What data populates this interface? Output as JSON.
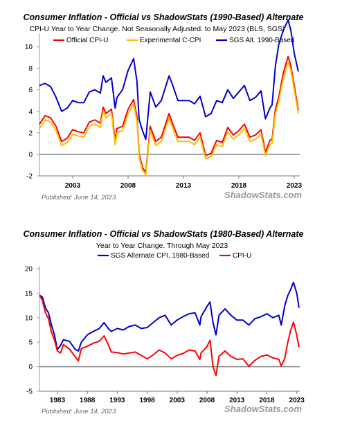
{
  "chart_data": [
    {
      "type": "line",
      "title": "Consumer Inflation - Official vs ShadowStats (1990-Based) Alternate",
      "subtitle": "CPI-U Year to Year Change. Not Seasonally Adjusted. to May 2023  (BLS, SGS)",
      "published": "Published: June 14, 2023",
      "brand": "ShadowStats.com",
      "xlim": [
        2000.0,
        2023.5
      ],
      "ylim": [
        -2,
        11
      ],
      "yticks": [
        "-2",
        "0",
        "2",
        "4",
        "6",
        "8",
        "10"
      ],
      "xticks": [
        "2003",
        "2008",
        "2013",
        "2018",
        "2023"
      ],
      "grid": false,
      "legend": "top",
      "series": [
        {
          "name": "Official CPI-U",
          "color": "#ff0000",
          "x": [
            2000.0,
            2000.5,
            2001.0,
            2001.5,
            2002.0,
            2002.5,
            2003.0,
            2003.5,
            2004.0,
            2004.5,
            2005.0,
            2005.5,
            2005.75,
            2006.0,
            2006.5,
            2006.83,
            2007.0,
            2007.5,
            2008.0,
            2008.5,
            2008.8,
            2009.0,
            2009.3,
            2009.6,
            2010.0,
            2010.5,
            2011.0,
            2011.7,
            2012.0,
            2012.5,
            2013.0,
            2013.5,
            2014.0,
            2014.5,
            2015.0,
            2015.5,
            2016.0,
            2016.5,
            2017.0,
            2017.5,
            2018.0,
            2018.5,
            2019.0,
            2019.5,
            2020.0,
            2020.4,
            2020.8,
            2021.0,
            2021.3,
            2021.6,
            2022.0,
            2022.45,
            2022.7,
            2023.0,
            2023.37
          ],
          "values": [
            2.8,
            3.6,
            3.4,
            2.6,
            1.2,
            1.5,
            2.3,
            2.1,
            2.0,
            3.0,
            3.2,
            2.9,
            4.4,
            3.8,
            4.2,
            1.3,
            2.4,
            2.6,
            4.2,
            5.1,
            3.5,
            0.0,
            -1.2,
            -1.7,
            2.6,
            1.2,
            1.6,
            3.8,
            2.9,
            1.6,
            1.6,
            1.6,
            1.3,
            2.0,
            -0.1,
            0.1,
            1.3,
            1.1,
            2.5,
            1.8,
            2.2,
            2.8,
            1.6,
            1.8,
            2.3,
            0.2,
            1.3,
            1.4,
            4.2,
            5.3,
            7.5,
            9.1,
            8.2,
            6.4,
            4.1
          ]
        },
        {
          "name": "Experimental C-CPI",
          "color": "#ffbe00",
          "x": [
            2000.0,
            2000.5,
            2001.0,
            2001.5,
            2002.0,
            2002.5,
            2003.0,
            2003.5,
            2004.0,
            2004.5,
            2005.0,
            2005.5,
            2005.75,
            2006.0,
            2006.5,
            2006.83,
            2007.0,
            2007.5,
            2008.0,
            2008.5,
            2008.8,
            2009.0,
            2009.3,
            2009.6,
            2010.0,
            2010.5,
            2011.0,
            2011.7,
            2012.0,
            2012.5,
            2013.0,
            2013.5,
            2014.0,
            2014.5,
            2015.0,
            2015.5,
            2016.0,
            2016.5,
            2017.0,
            2017.5,
            2018.0,
            2018.5,
            2019.0,
            2019.5,
            2020.0,
            2020.4,
            2020.8,
            2021.0,
            2021.3,
            2021.6,
            2022.0,
            2022.45,
            2022.7,
            2023.0,
            2023.37
          ],
          "values": [
            2.4,
            3.2,
            3.0,
            2.2,
            0.8,
            1.1,
            1.9,
            1.7,
            1.6,
            2.6,
            2.8,
            2.5,
            4.0,
            3.4,
            3.8,
            0.9,
            2.0,
            2.2,
            3.8,
            4.7,
            3.1,
            -0.3,
            -1.5,
            -1.9,
            2.2,
            0.8,
            1.2,
            3.4,
            2.5,
            1.2,
            1.2,
            1.2,
            0.9,
            1.6,
            -0.4,
            -0.2,
            0.9,
            0.7,
            2.1,
            1.4,
            1.8,
            2.4,
            1.2,
            1.4,
            1.9,
            -0.1,
            0.9,
            1.0,
            3.8,
            4.9,
            7.0,
            8.5,
            7.8,
            6.0,
            3.8
          ]
        },
        {
          "name": "SGS  Alt. 1990-Based",
          "color": "#0000cc",
          "x": [
            2000.0,
            2000.5,
            2001.0,
            2001.5,
            2002.0,
            2002.5,
            2003.0,
            2003.5,
            2004.0,
            2004.5,
            2005.0,
            2005.5,
            2005.75,
            2006.0,
            2006.5,
            2006.83,
            2007.0,
            2007.5,
            2008.0,
            2008.5,
            2008.8,
            2009.0,
            2009.3,
            2009.6,
            2010.0,
            2010.5,
            2011.0,
            2011.7,
            2012.0,
            2012.5,
            2013.0,
            2013.5,
            2014.0,
            2014.5,
            2015.0,
            2015.5,
            2016.0,
            2016.5,
            2017.0,
            2017.5,
            2018.0,
            2018.5,
            2019.0,
            2019.5,
            2020.0,
            2020.4,
            2020.8,
            2021.0,
            2021.3,
            2021.6,
            2022.0,
            2022.45,
            2022.7,
            2023.0,
            2023.37
          ],
          "values": [
            6.4,
            6.6,
            6.3,
            5.3,
            4.0,
            4.3,
            5.0,
            4.8,
            4.8,
            5.8,
            6.0,
            5.7,
            7.3,
            6.7,
            7.1,
            4.3,
            5.3,
            6.0,
            7.8,
            8.9,
            6.8,
            3.2,
            2.2,
            1.4,
            5.8,
            4.4,
            5.0,
            7.3,
            6.5,
            5.0,
            5.0,
            5.0,
            4.7,
            5.4,
            3.5,
            3.8,
            5.0,
            4.8,
            6.0,
            5.2,
            5.8,
            6.4,
            5.0,
            5.3,
            5.9,
            3.3,
            4.3,
            4.6,
            8.2,
            10.2,
            11.5,
            12.5,
            11.5,
            9.4,
            7.7
          ]
        }
      ]
    },
    {
      "type": "line",
      "title": "Consumer Inflation - Official vs ShadowStats (1980-Based) Alternate",
      "subtitle": "Year to Year Change. Through May 2023",
      "published": "Published: June 14, 2023",
      "brand": "ShadowStats.com",
      "xlim": [
        1980.0,
        2023.5
      ],
      "ylim": [
        -5,
        20
      ],
      "yticks": [
        "-5",
        "0",
        "5",
        "10",
        "15",
        "20"
      ],
      "xticks": [
        "1983",
        "1988",
        "1993",
        "1998",
        "2003",
        "2008",
        "2013",
        "2018",
        "2023"
      ],
      "grid": false,
      "legend": "top",
      "series": [
        {
          "name": "SGS Alternate CPI, 1980-Based",
          "color": "#0000cc",
          "x": [
            1980.0,
            1980.5,
            1981.0,
            1981.5,
            1982.0,
            1982.5,
            1983.0,
            1983.5,
            1984.0,
            1985.0,
            1986.0,
            1986.5,
            1987.0,
            1988.0,
            1989.0,
            1990.0,
            1990.8,
            1991.5,
            1992.0,
            1993.0,
            1994.0,
            1995.0,
            1996.0,
            1997.0,
            1998.0,
            1999.0,
            2000.0,
            2001.0,
            2002.0,
            2003.0,
            2004.0,
            2005.0,
            2006.0,
            2006.8,
            2007.0,
            2008.0,
            2008.5,
            2009.0,
            2009.5,
            2010.0,
            2011.0,
            2012.0,
            2013.0,
            2014.0,
            2015.0,
            2016.0,
            2017.0,
            2018.0,
            2019.0,
            2020.0,
            2020.4,
            2021.0,
            2021.5,
            2022.0,
            2022.45,
            2023.0,
            2023.37
          ],
          "values": [
            14.6,
            14.2,
            12.0,
            11.0,
            8.5,
            6.5,
            3.5,
            4.3,
            5.5,
            5.2,
            3.5,
            3.2,
            5.0,
            6.5,
            7.2,
            7.8,
            9.0,
            7.8,
            7.2,
            7.8,
            7.5,
            8.2,
            8.5,
            7.8,
            8.0,
            9.0,
            10.0,
            10.5,
            8.5,
            9.5,
            10.2,
            10.8,
            11.0,
            8.5,
            10.2,
            12.3,
            13.2,
            9.0,
            6.5,
            10.5,
            11.8,
            10.5,
            9.5,
            9.5,
            8.5,
            9.8,
            10.2,
            10.8,
            10.0,
            10.5,
            8.5,
            12.5,
            14.5,
            15.8,
            17.2,
            15.0,
            12.0
          ]
        },
        {
          "name": "CPI-U",
          "color": "#ff0000",
          "x": [
            1980.0,
            1980.5,
            1981.0,
            1981.5,
            1982.0,
            1982.5,
            1983.0,
            1983.5,
            1984.0,
            1985.0,
            1986.0,
            1986.5,
            1987.0,
            1988.0,
            1989.0,
            1990.0,
            1990.8,
            1991.5,
            1992.0,
            1993.0,
            1994.0,
            1995.0,
            1996.0,
            1997.0,
            1998.0,
            1999.0,
            2000.0,
            2001.0,
            2002.0,
            2003.0,
            2004.0,
            2005.0,
            2006.0,
            2006.8,
            2007.0,
            2008.0,
            2008.5,
            2009.0,
            2009.5,
            2010.0,
            2011.0,
            2012.0,
            2013.0,
            2014.0,
            2015.0,
            2016.0,
            2017.0,
            2018.0,
            2019.0,
            2020.0,
            2020.4,
            2021.0,
            2021.5,
            2022.0,
            2022.45,
            2023.0,
            2023.37
          ],
          "values": [
            14.6,
            13.5,
            11.0,
            9.8,
            7.0,
            5.5,
            3.2,
            2.8,
            4.5,
            3.6,
            2.0,
            1.2,
            3.7,
            4.2,
            4.8,
            5.2,
            6.3,
            4.5,
            3.0,
            2.9,
            2.6,
            2.8,
            3.0,
            2.3,
            1.6,
            2.4,
            3.4,
            2.8,
            1.6,
            2.3,
            2.7,
            3.4,
            3.2,
            1.5,
            2.8,
            4.1,
            5.4,
            0.0,
            -1.8,
            2.1,
            3.2,
            2.1,
            1.5,
            1.6,
            0.1,
            1.3,
            2.1,
            2.4,
            1.8,
            1.5,
            0.2,
            1.7,
            5.0,
            7.5,
            9.1,
            6.4,
            4.0
          ]
        }
      ]
    }
  ]
}
